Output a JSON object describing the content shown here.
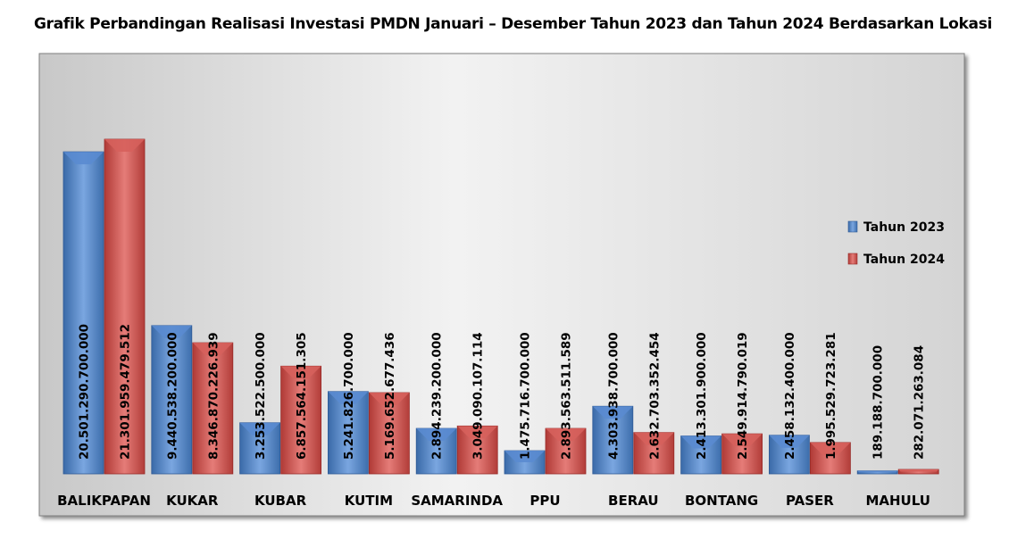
{
  "chart_data": {
    "type": "bar",
    "title": "Grafik Perbandingan Realisasi Investasi PMDN Januari – Desember Tahun 2023 dan Tahun 2024 Berdasarkan Lokasi",
    "categories": [
      "BALIKPAPAN",
      "KUKAR",
      "KUBAR",
      "KUTIM",
      "SAMARINDA",
      "PPU",
      "BERAU",
      "BONTANG",
      "PASER",
      "MAHULU"
    ],
    "series": [
      {
        "name": "Tahun 2023",
        "color": "#4F81BD",
        "values": [
          20501290700000,
          9440538200000,
          3253522500000,
          5241826700000,
          2894239200000,
          1475716700000,
          4303938700000,
          2413301900000,
          2458132400000,
          189188700000
        ],
        "labels": [
          "20.501.290.700.000",
          "9.440.538.200.000",
          "3.253.522.500.000",
          "5.241.826.700.000",
          "2.894.239.200.000",
          "1.475.716.700.000",
          "4.303.938.700.000",
          "2.413.301.900.000",
          "2.458.132.400.000",
          "189.188.700.000"
        ]
      },
      {
        "name": "Tahun 2024",
        "color": "#C0504D",
        "values": [
          21301959479512,
          8346870226939,
          6857564151305,
          5169652677436,
          3049090107114,
          2893563511589,
          2632703352454,
          2549914790019,
          1995529723281,
          282071263084
        ],
        "labels": [
          "21.301.959.479.512",
          "8.346.870.226.939",
          "6.857.564.151.305",
          "5.169.652.677.436",
          "3.049.090.107.114",
          "2.893.563.511.589",
          "2.632.703.352.454",
          "2.549.914.790.019",
          "1.995.529.723.281",
          "282.071.263.084"
        ]
      }
    ],
    "legend": "right",
    "grid": false
  }
}
